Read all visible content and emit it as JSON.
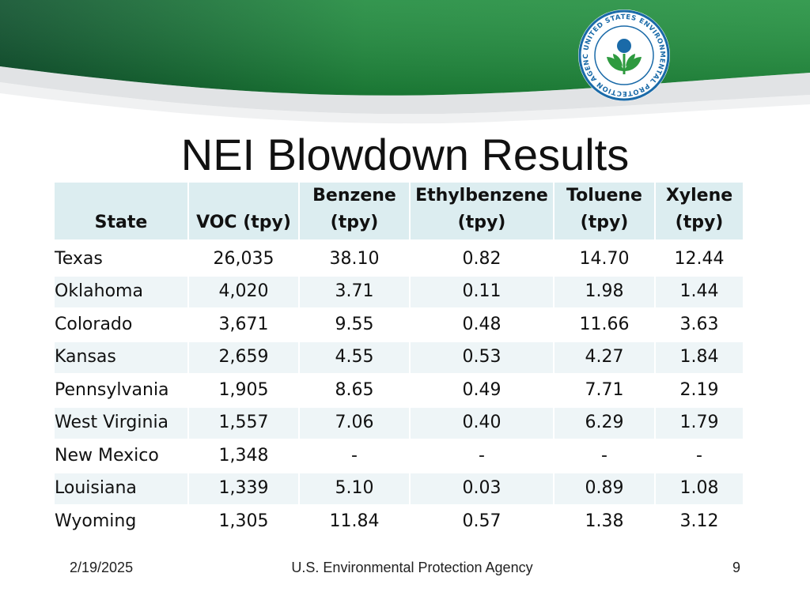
{
  "slide": {
    "title": "NEI Blowdown Results",
    "logo_text": "UNITED STATES ENVIRONMENTAL PROTECTION AGENCY"
  },
  "colors": {
    "banner_dark": "#0b5a2e",
    "banner_light": "#1f8a3c",
    "header_fill": "#dcedf0",
    "row_alt_fill": "#eef5f7"
  },
  "table": {
    "headers": [
      [
        "State"
      ],
      [
        "VOC (tpy)"
      ],
      [
        "Benzene",
        "(tpy)"
      ],
      [
        "Ethylbenzene",
        "(tpy)"
      ],
      [
        "Toluene",
        "(tpy)"
      ],
      [
        "Xylene",
        "(tpy)"
      ]
    ],
    "rows": [
      [
        "Texas",
        "26,035",
        "38.10",
        "0.82",
        "14.70",
        "12.44"
      ],
      [
        "Oklahoma",
        "4,020",
        "3.71",
        "0.11",
        "1.98",
        "1.44"
      ],
      [
        "Colorado",
        "3,671",
        "9.55",
        "0.48",
        "11.66",
        "3.63"
      ],
      [
        "Kansas",
        "2,659",
        "4.55",
        "0.53",
        "4.27",
        "1.84"
      ],
      [
        "Pennsylvania",
        "1,905",
        "8.65",
        "0.49",
        "7.71",
        "2.19"
      ],
      [
        "West Virginia",
        "1,557",
        "7.06",
        "0.40",
        "6.29",
        "1.79"
      ],
      [
        "New Mexico",
        "1,348",
        "-",
        "-",
        "-",
        "-"
      ],
      [
        "Louisiana",
        "1,339",
        "5.10",
        "0.03",
        "0.89",
        "1.08"
      ],
      [
        "Wyoming",
        "1,305",
        "11.84",
        "0.57",
        "1.38",
        "3.12"
      ]
    ]
  },
  "footer": {
    "date": "2/19/2025",
    "agency": "U.S. Environmental Protection Agency",
    "page": "9"
  }
}
